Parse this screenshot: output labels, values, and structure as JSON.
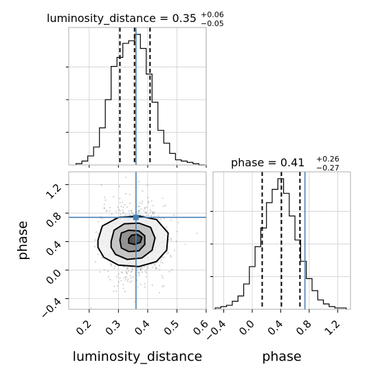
{
  "chart_data": {
    "type": "corner",
    "parameters": [
      "luminosity_distance",
      "phase"
    ],
    "axis_labels": {
      "x_bottom_left": "luminosity_distance",
      "y_left": "phase",
      "x_bottom_right": "phase"
    },
    "grid": true,
    "truth_color": "#4682b4",
    "truth": {
      "luminosity_distance": 0.36,
      "phase": 0.74
    },
    "titles": {
      "luminosity_distance": {
        "name": "luminosity_distance",
        "median": "0.35",
        "plus": "+0.06",
        "minus": "−0.05"
      },
      "phase": {
        "name": "phase",
        "median": "0.41",
        "plus": "+0.26",
        "minus": "−0.27"
      }
    },
    "ticks": {
      "luminosity_distance": [
        "0.2",
        "0.3",
        "0.4",
        "0.5",
        "0.6"
      ],
      "phase": [
        "−0.4",
        "0.0",
        "0.4",
        "0.8",
        "1.2"
      ]
    },
    "ranges": {
      "luminosity_distance": [
        0.13,
        0.6
      ],
      "phase": [
        -0.55,
        1.38
      ]
    },
    "quantiles": {
      "luminosity_distance": [
        0.305,
        0.355,
        0.408
      ],
      "phase": [
        0.14,
        0.41,
        0.67
      ]
    },
    "hist_luminosity_distance": {
      "edges": [
        0.155,
        0.175,
        0.195,
        0.215,
        0.235,
        0.255,
        0.275,
        0.295,
        0.315,
        0.335,
        0.355,
        0.375,
        0.395,
        0.415,
        0.435,
        0.455,
        0.475,
        0.495,
        0.515,
        0.535,
        0.555,
        0.575,
        0.595
      ],
      "counts": [
        1,
        3,
        7,
        14,
        29,
        51,
        77,
        84,
        95,
        97,
        102,
        91,
        71,
        49,
        27,
        17,
        9,
        4,
        3,
        2,
        1,
        0
      ]
    },
    "hist_phase": {
      "edges": [
        -0.52,
        -0.44,
        -0.36,
        -0.28,
        -0.2,
        -0.12,
        -0.04,
        0.04,
        0.12,
        0.2,
        0.28,
        0.36,
        0.44,
        0.52,
        0.6,
        0.68,
        0.76,
        0.84,
        0.92,
        1.0,
        1.08,
        1.16,
        1.24,
        1.32
      ],
      "counts": [
        1,
        2,
        3,
        6,
        10,
        19,
        32,
        47,
        61,
        80,
        90,
        98,
        87,
        70,
        52,
        36,
        23,
        14,
        7,
        4,
        2,
        1,
        1
      ]
    },
    "contours_2d": [
      {
        "level": "outer",
        "points": [
          [
            0.23,
            0.42
          ],
          [
            0.245,
            0.62
          ],
          [
            0.3,
            0.74
          ],
          [
            0.37,
            0.76
          ],
          [
            0.43,
            0.71
          ],
          [
            0.47,
            0.52
          ],
          [
            0.465,
            0.28
          ],
          [
            0.43,
            0.12
          ],
          [
            0.37,
            0.05
          ],
          [
            0.3,
            0.07
          ],
          [
            0.25,
            0.18
          ],
          [
            0.23,
            0.32
          ]
        ]
      },
      {
        "level": "middle",
        "points": [
          [
            0.275,
            0.4
          ],
          [
            0.285,
            0.56
          ],
          [
            0.32,
            0.65
          ],
          [
            0.37,
            0.66
          ],
          [
            0.41,
            0.6
          ],
          [
            0.425,
            0.45
          ],
          [
            0.415,
            0.28
          ],
          [
            0.38,
            0.17
          ],
          [
            0.33,
            0.15
          ],
          [
            0.29,
            0.22
          ],
          [
            0.275,
            0.32
          ]
        ]
      },
      {
        "level": "inner",
        "points": [
          [
            0.305,
            0.42
          ],
          [
            0.31,
            0.52
          ],
          [
            0.335,
            0.56
          ],
          [
            0.37,
            0.55
          ],
          [
            0.39,
            0.48
          ],
          [
            0.39,
            0.36
          ],
          [
            0.37,
            0.27
          ],
          [
            0.335,
            0.26
          ],
          [
            0.31,
            0.31
          ]
        ]
      },
      {
        "level": "core",
        "points": [
          [
            0.335,
            0.44
          ],
          [
            0.345,
            0.49
          ],
          [
            0.365,
            0.5
          ],
          [
            0.38,
            0.46
          ],
          [
            0.375,
            0.39
          ],
          [
            0.355,
            0.36
          ],
          [
            0.335,
            0.38
          ]
        ]
      }
    ]
  }
}
